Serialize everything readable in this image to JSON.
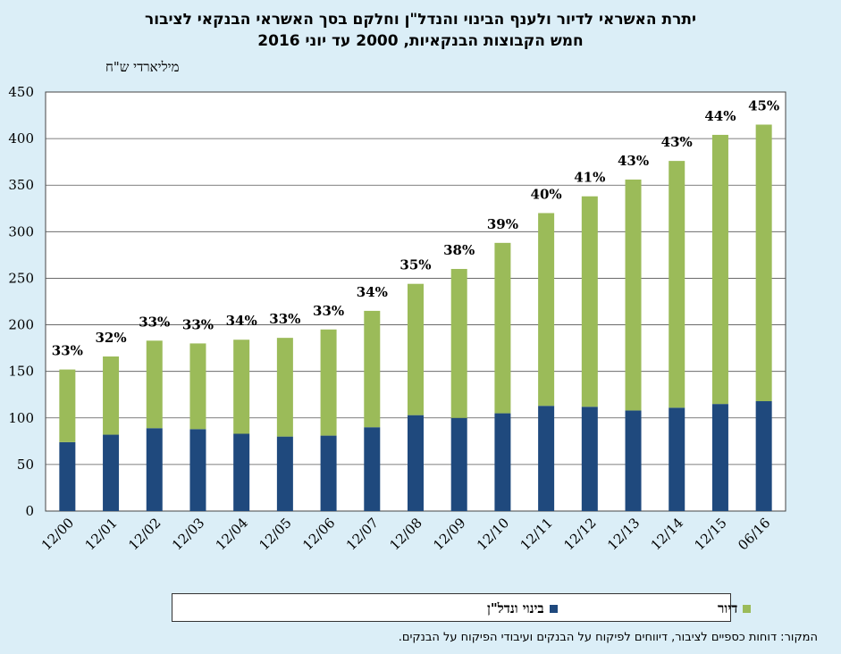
{
  "title_line1": "יתרת האשראי לדיור ולענף הבינוי והנדל\"ן  וחלקם בסך האשראי הבנקאי לציבור",
  "title_line2": "חמש הקבוצות הבנקאיות, 2000 עד יוני 2016",
  "source": "המקור: דוחות כספיים לציבור, דיווחים לפיקוח על הבנקים ועיבודי הפיקוח על הבנקים.",
  "colors": {
    "construction": "#1f497d",
    "housing": "#9bbb59",
    "background": "#dbeef7",
    "plot_bg": "#ffffff"
  },
  "chart_data": {
    "type": "bar",
    "stacked": true,
    "ylabel": "מיליארדי ש\"ח",
    "ylim": [
      0,
      450
    ],
    "yticks": [
      0,
      50,
      100,
      150,
      200,
      250,
      300,
      350,
      400,
      450
    ],
    "grid": true,
    "legend_position": "bottom",
    "categories": [
      "12/00",
      "12/01",
      "12/02",
      "12/03",
      "12/04",
      "12/05",
      "12/06",
      "12/07",
      "12/08",
      "12/09",
      "12/10",
      "12/11",
      "12/12",
      "12/13",
      "12/14",
      "12/15",
      "06/16"
    ],
    "series": [
      {
        "name": "בינוי ונדל\"ן",
        "values": [
          74,
          82,
          89,
          88,
          83,
          80,
          81,
          90,
          103,
          100,
          105,
          113,
          112,
          108,
          111,
          115,
          118
        ]
      },
      {
        "name": "דיור",
        "values": [
          78,
          84,
          94,
          92,
          101,
          106,
          114,
          125,
          141,
          160,
          183,
          207,
          226,
          248,
          265,
          289,
          297
        ]
      }
    ],
    "totals": [
      152,
      166,
      183,
      180,
      184,
      186,
      195,
      215,
      244,
      260,
      288,
      320,
      338,
      356,
      376,
      404,
      415
    ],
    "share_labels": [
      "33%",
      "32%",
      "33%",
      "33%",
      "34%",
      "33%",
      "33%",
      "34%",
      "35%",
      "38%",
      "39%",
      "40%",
      "41%",
      "43%",
      "43%",
      "44%",
      "45%"
    ]
  }
}
